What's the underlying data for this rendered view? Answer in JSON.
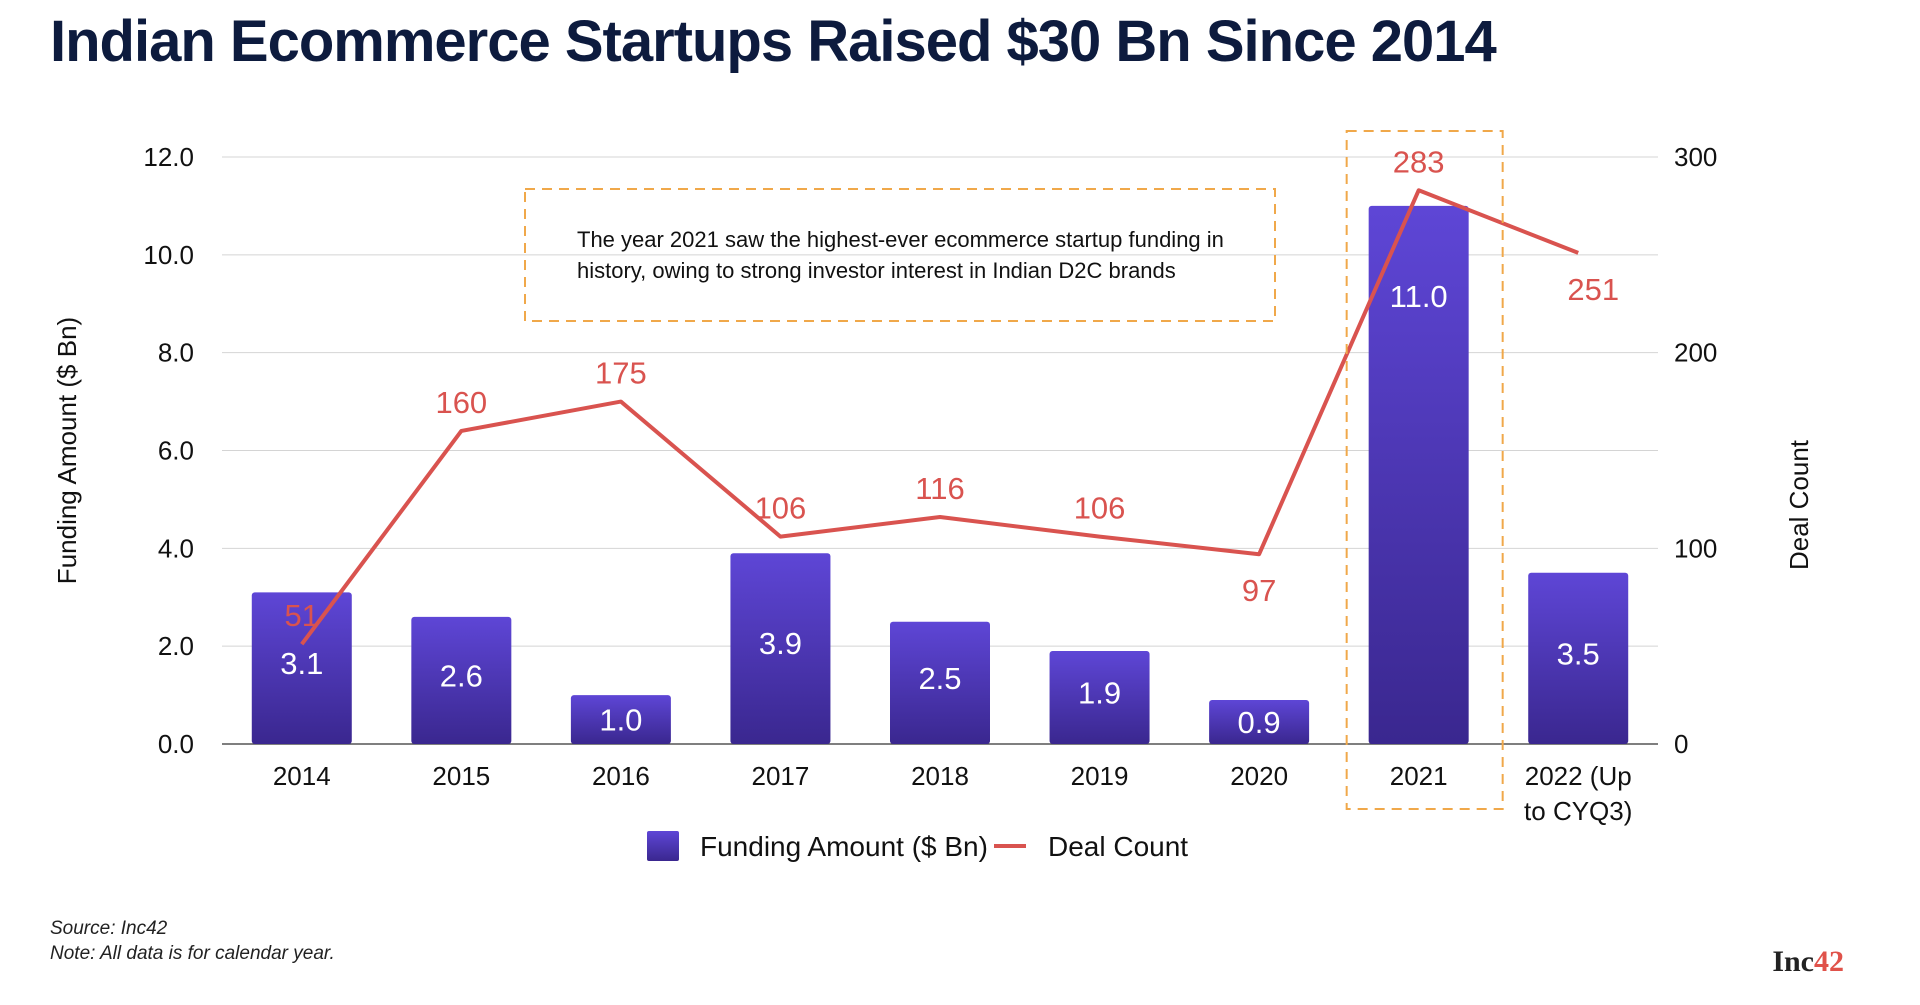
{
  "title": "Indian Ecommerce Startups Raised $30 Bn Since 2014",
  "source": "Source: Inc42",
  "note": "Note: All data is for calendar year.",
  "brand": {
    "main": "Inc",
    "accent": "42"
  },
  "colors": {
    "bar_top": "#5e46d6",
    "bar_bottom": "#3a278f",
    "line": "#d9534f",
    "callout_border": "#f0a84a",
    "text": "#111111",
    "grid": "#d4d4d4"
  },
  "chart_data": {
    "type": "bar",
    "categories": [
      "2014",
      "2015",
      "2016",
      "2017",
      "2018",
      "2019",
      "2020",
      "2021",
      "2022 (Up to CYQ3)"
    ],
    "category_lines": [
      [
        "2014"
      ],
      [
        "2015"
      ],
      [
        "2016"
      ],
      [
        "2017"
      ],
      [
        "2018"
      ],
      [
        "2019"
      ],
      [
        "2020"
      ],
      [
        "2021"
      ],
      [
        "2022 (Up",
        "to CYQ3)"
      ]
    ],
    "series": [
      {
        "name": "Funding Amount ($ Bn)",
        "kind": "bar",
        "axis": "left",
        "values": [
          3.1,
          2.6,
          1.0,
          3.9,
          2.5,
          1.9,
          0.9,
          11.0,
          3.5
        ],
        "labels": [
          "3.1",
          "2.6",
          "1.0",
          "3.9",
          "2.5",
          "1.9",
          "0.9",
          "11.0",
          "3.5"
        ]
      },
      {
        "name": "Deal Count",
        "kind": "line",
        "axis": "right",
        "values": [
          51,
          160,
          175,
          106,
          116,
          106,
          97,
          283,
          251
        ],
        "labels": [
          "51",
          "160",
          "175",
          "106",
          "116",
          "106",
          "97",
          "283",
          "251"
        ]
      }
    ],
    "ylabel": "Funding Amount ($ Bn)",
    "y2label": "Deal Count",
    "ylim": [
      0,
      12
    ],
    "y2lim": [
      0,
      300
    ],
    "yticks": [
      "0.0",
      "2.0",
      "4.0",
      "6.0",
      "8.0",
      "10.0",
      "12.0"
    ],
    "y2ticks": [
      "0",
      "100",
      "200",
      "300"
    ],
    "grid": true,
    "legend_position": "bottom-center",
    "annotation": {
      "lines": [
        "The year 2021 saw the highest-ever ecommerce startup funding in",
        "history, owing to strong investor interest in Indian D2C brands"
      ]
    },
    "highlight_category": "2021"
  }
}
